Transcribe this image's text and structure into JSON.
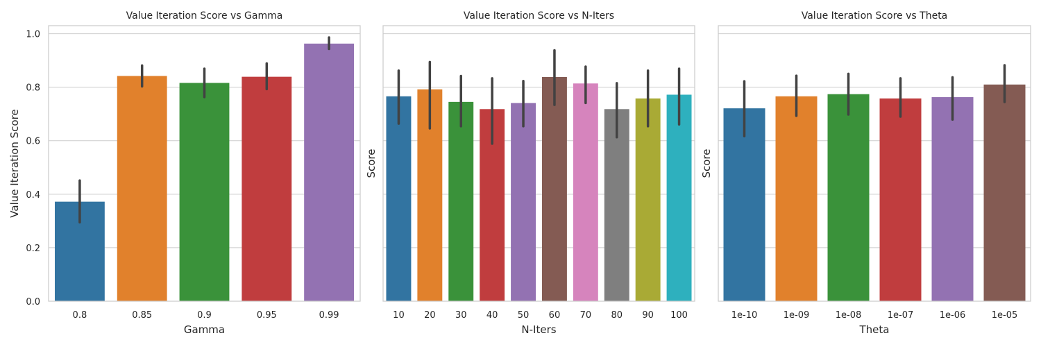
{
  "chart_data": [
    {
      "type": "bar",
      "title": "Value Iteration Score vs Gamma",
      "xlabel": "Gamma",
      "ylabel": "Value Iteration Score",
      "ylim": [
        0,
        1.03
      ],
      "yticks": [
        0.0,
        0.2,
        0.4,
        0.6,
        0.8,
        1.0
      ],
      "ytick_labels": [
        "0.0",
        "0.2",
        "0.4",
        "0.6",
        "0.8",
        "1.0"
      ],
      "grid": true,
      "categories": [
        "0.8",
        "0.85",
        "0.9",
        "0.95",
        "0.99"
      ],
      "values": [
        0.372,
        0.842,
        0.816,
        0.839,
        0.963
      ],
      "error_low": [
        0.295,
        0.803,
        0.763,
        0.793,
        0.943
      ],
      "error_high": [
        0.451,
        0.881,
        0.869,
        0.889,
        0.986
      ],
      "colors": [
        "#3274a1",
        "#e1812c",
        "#3a923a",
        "#c03d3e",
        "#9372b2"
      ]
    },
    {
      "type": "bar",
      "title": "Value Iteration Score vs N-Iters",
      "xlabel": "N-Iters",
      "ylabel": "Score",
      "ylim": [
        0,
        1.03
      ],
      "yticks": [
        0.0,
        0.2,
        0.4,
        0.6,
        0.8,
        1.0
      ],
      "ytick_labels": [],
      "grid": true,
      "categories": [
        "10",
        "20",
        "30",
        "40",
        "50",
        "60",
        "70",
        "80",
        "90",
        "100"
      ],
      "values": [
        0.766,
        0.792,
        0.745,
        0.718,
        0.741,
        0.838,
        0.814,
        0.718,
        0.758,
        0.772
      ],
      "error_low": [
        0.664,
        0.646,
        0.654,
        0.589,
        0.654,
        0.734,
        0.741,
        0.613,
        0.654,
        0.661
      ],
      "error_high": [
        0.862,
        0.894,
        0.842,
        0.833,
        0.823,
        0.938,
        0.877,
        0.815,
        0.862,
        0.869
      ],
      "colors": [
        "#3274a1",
        "#e1812c",
        "#3a923a",
        "#c03d3e",
        "#9372b2",
        "#845b53",
        "#d684bd",
        "#7f7f7f",
        "#a9aa35",
        "#2eb0be"
      ]
    },
    {
      "type": "bar",
      "title": "Value Iteration Score vs Theta",
      "xlabel": "Theta",
      "ylabel": "Score",
      "ylim": [
        0,
        1.03
      ],
      "yticks": [
        0.0,
        0.2,
        0.4,
        0.6,
        0.8,
        1.0
      ],
      "ytick_labels": [],
      "grid": true,
      "categories": [
        "1e-10",
        "1e-09",
        "1e-08",
        "1e-07",
        "1e-06",
        "1e-05"
      ],
      "values": [
        0.721,
        0.766,
        0.774,
        0.758,
        0.763,
        0.81
      ],
      "error_low": [
        0.617,
        0.693,
        0.698,
        0.69,
        0.679,
        0.745
      ],
      "error_high": [
        0.822,
        0.843,
        0.85,
        0.833,
        0.837,
        0.882
      ],
      "colors": [
        "#3274a1",
        "#e1812c",
        "#3a923a",
        "#c03d3e",
        "#9372b2",
        "#845b53"
      ]
    }
  ]
}
